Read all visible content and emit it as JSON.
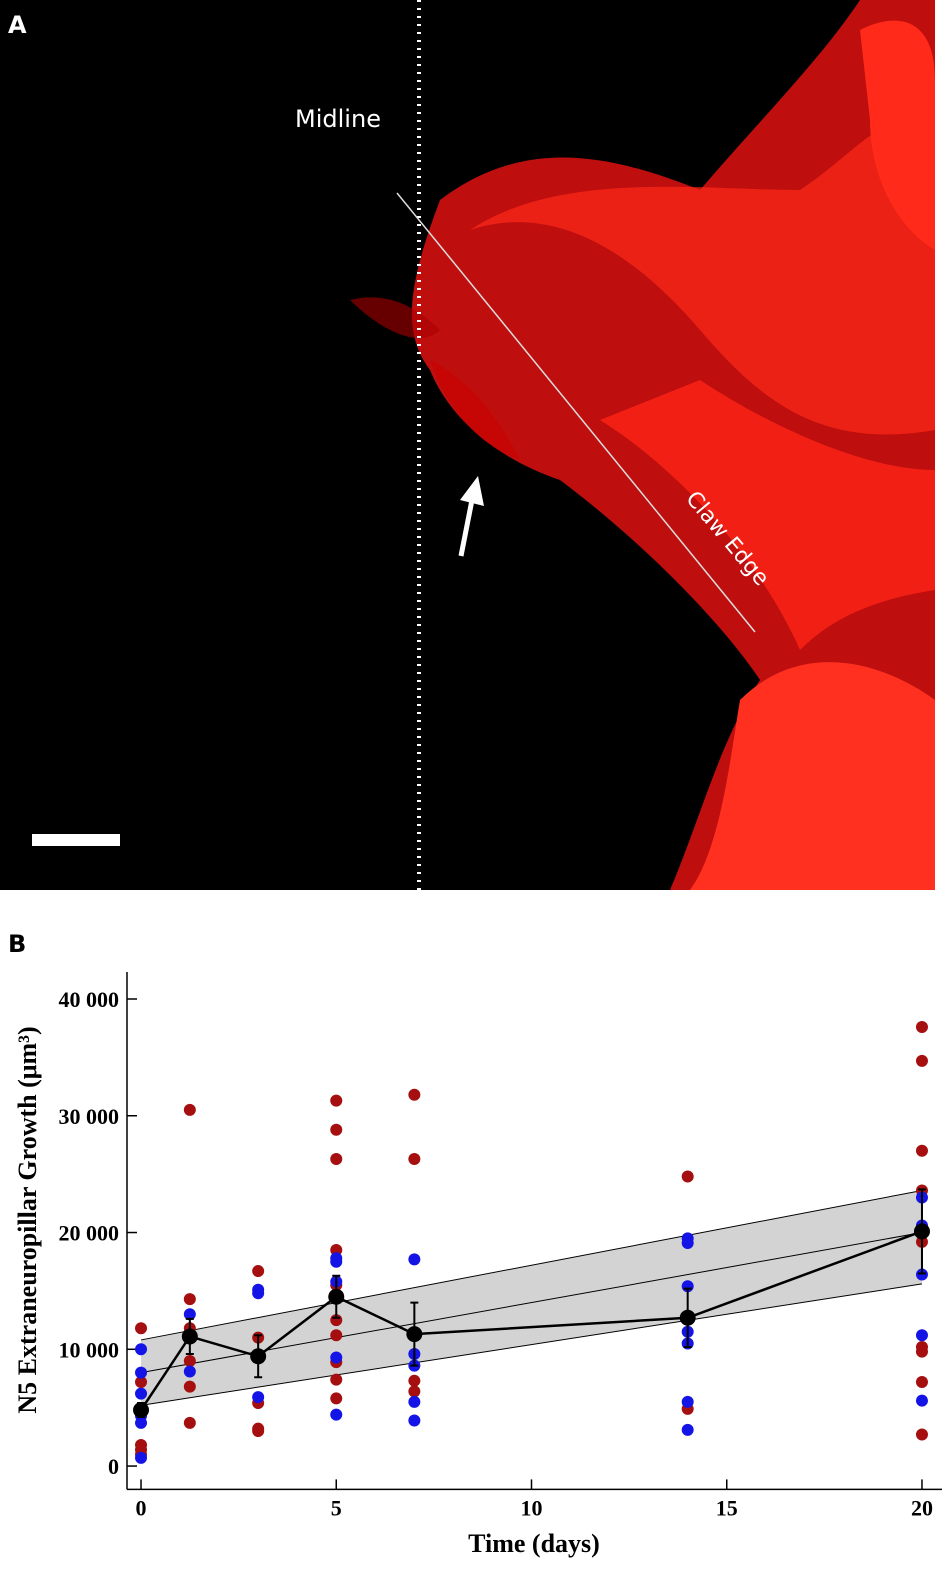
{
  "panel_a": {
    "label": "A",
    "annotations": [
      "Midline",
      "Claw Edge"
    ]
  },
  "chart_data": {
    "type": "scatter",
    "panel_label": "B",
    "x_label": "Time (days)",
    "y_label": "N5 Extraneuropillar Growth (μm³)",
    "xlim": [
      -0.4,
      20.5
    ],
    "ylim": [
      -2000,
      42000
    ],
    "xticks": [
      0,
      5,
      10,
      15,
      20
    ],
    "yticks": [
      0,
      {
        "value": 10000,
        "label": "10 000"
      },
      {
        "value": 20000,
        "label": "20 000"
      },
      {
        "value": 30000,
        "label": "30 000"
      },
      {
        "value": 40000,
        "label": "40 000"
      }
    ],
    "series": [
      {
        "color": "#a50f0f",
        "x": [
          0,
          0,
          0,
          0,
          0,
          1.25,
          1.25,
          1.25,
          1.25,
          1.25,
          1.25,
          3,
          3,
          3,
          3,
          3,
          5,
          5,
          5,
          5,
          5,
          5,
          5,
          5,
          5,
          5,
          7,
          7,
          7,
          7,
          14,
          14,
          20,
          20,
          20,
          20,
          20,
          20,
          20,
          20,
          20
        ],
        "values": [
          11800,
          7200,
          1800,
          1400,
          1000,
          30500,
          14300,
          11800,
          9000,
          6800,
          3700,
          16700,
          11000,
          5400,
          3200,
          3000,
          31300,
          28800,
          26300,
          18500,
          15500,
          12500,
          11200,
          8900,
          7400,
          5800,
          31800,
          26300,
          7300,
          6400,
          24800,
          4900,
          37600,
          34700,
          27000,
          23600,
          19200,
          10200,
          9800,
          7200,
          2700
        ]
      },
      {
        "color": "#1414e6",
        "x": [
          0,
          0,
          0,
          0,
          0,
          0,
          1.25,
          1.25,
          1.25,
          3,
          3,
          3,
          5,
          5,
          5,
          5,
          5,
          7,
          7,
          7,
          7,
          7,
          14,
          14,
          14,
          14,
          14,
          14,
          14,
          20,
          20,
          20,
          20,
          20
        ],
        "values": [
          10000,
          8000,
          6200,
          4300,
          3700,
          700,
          13000,
          11100,
          8100,
          15100,
          14800,
          5900,
          17800,
          17500,
          15800,
          9300,
          4400,
          17700,
          9600,
          8600,
          5500,
          3900,
          19500,
          19100,
          15400,
          11500,
          10500,
          5500,
          3100,
          23000,
          20600,
          16400,
          11200,
          5600
        ]
      }
    ],
    "mean": {
      "color": "#000000",
      "x": [
        0,
        1.25,
        3,
        5,
        7,
        14,
        20
      ],
      "values": [
        4800,
        11100,
        9400,
        14500,
        11300,
        12700,
        20100
      ],
      "errors": [
        600,
        1500,
        1800,
        1800,
        2700,
        2500,
        3600
      ]
    },
    "fit": {
      "color": "#d3d3d3",
      "x": [
        0,
        20
      ],
      "values": [
        8000,
        20000
      ],
      "lower": [
        5200,
        15600
      ],
      "upper": [
        10800,
        23600
      ]
    }
  }
}
